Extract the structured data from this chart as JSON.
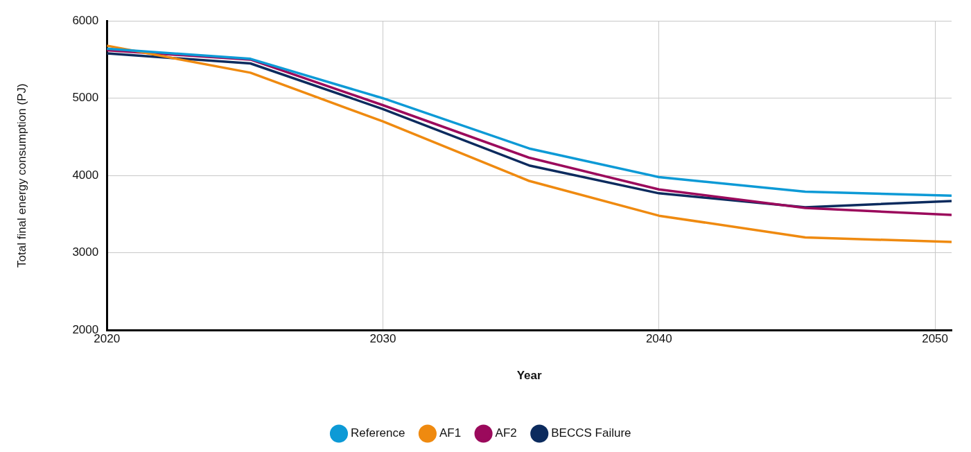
{
  "chart_data": {
    "type": "line",
    "xlabel": "Year",
    "ylabel": "Total final energy consumption (PJ)",
    "x": [
      2020,
      2025.2,
      2030,
      2035.3,
      2040,
      2045.3,
      2050.6
    ],
    "xlim": [
      2020,
      2050.6
    ],
    "xticks": [
      2020,
      2030,
      2040,
      2050
    ],
    "ylim": [
      2000,
      6000
    ],
    "yticks": [
      2000,
      3000,
      4000,
      5000,
      6000
    ],
    "grid": true,
    "legend": "bottom",
    "marker": "none",
    "line_style": "solid",
    "series": [
      {
        "name": "Reference",
        "color": "#0d9ad6",
        "values": [
          5640,
          5510,
          5000,
          4350,
          3980,
          3790,
          3740
        ]
      },
      {
        "name": "AF1",
        "color": "#ef8a10",
        "values": [
          5680,
          5330,
          4700,
          3930,
          3480,
          3200,
          3140
        ]
      },
      {
        "name": "AF2",
        "color": "#9b0a5c",
        "values": [
          5620,
          5500,
          4910,
          4230,
          3820,
          3580,
          3490
        ]
      },
      {
        "name": "BECCS Failure",
        "color": "#0c2b5e",
        "values": [
          5580,
          5450,
          4860,
          4130,
          3770,
          3590,
          3670
        ]
      }
    ]
  }
}
